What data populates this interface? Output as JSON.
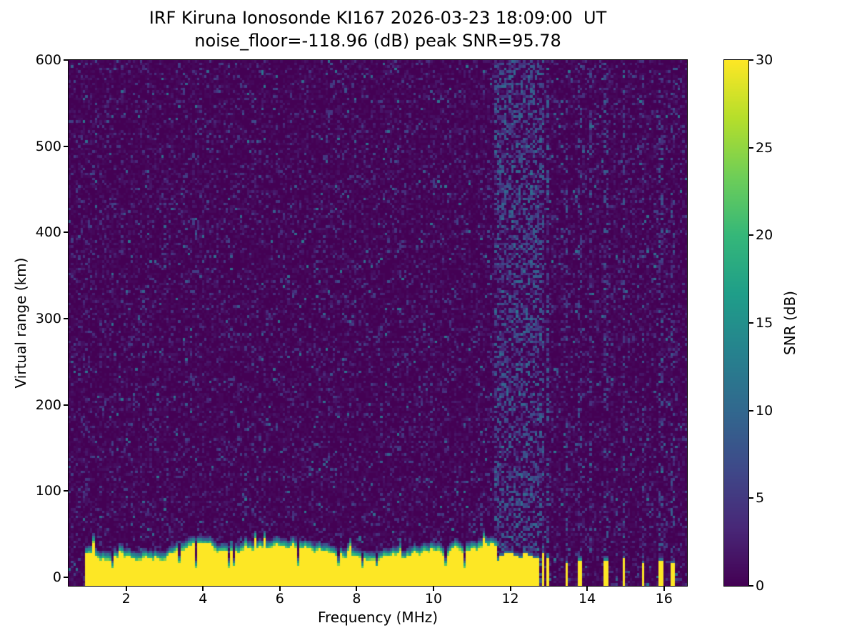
{
  "title": {
    "line1": "IRF Kiruna Ionosonde KI167 2026-03-23 18:09:00  UT",
    "line2": "noise_floor=-118.96 (dB) peak SNR=95.78"
  },
  "axes": {
    "xlabel": "Frequency (MHz)",
    "ylabel": "Virtual range (km)",
    "x_ticks": [
      2,
      4,
      6,
      8,
      10,
      12,
      14,
      16
    ],
    "y_ticks": [
      0,
      100,
      200,
      300,
      400,
      500,
      600
    ]
  },
  "colorbar": {
    "label": "SNR (dB)",
    "ticks": [
      0,
      5,
      10,
      15,
      20,
      25,
      30
    ],
    "range_db": [
      0,
      30
    ],
    "colormap": "viridis",
    "colormap_stops": [
      "#440154",
      "#482878",
      "#3e4989",
      "#31688e",
      "#26828e",
      "#1f9e89",
      "#35b779",
      "#6ece58",
      "#b5de2b",
      "#fde725"
    ]
  },
  "chart_data": {
    "type": "heatmap",
    "title": "IRF Kiruna Ionosonde KI167 2026-03-23 18:09:00  UT",
    "subtitle": "noise_floor=-118.96 (dB) peak SNR=95.78",
    "xlabel": "Frequency (MHz)",
    "ylabel": "Virtual range (km)",
    "colorbar_label": "SNR (dB)",
    "noise_floor_db": -118.96,
    "peak_snr_db": 95.78,
    "x_range_mhz": [
      0.5,
      16.6
    ],
    "y_range_km": [
      -10,
      600
    ],
    "value_range_db": [
      0,
      30
    ],
    "colormap": "viridis",
    "grid": {
      "cols": 260,
      "rows": 210
    },
    "render_seed": 167,
    "features": {
      "background_noise": {
        "description": "sparse blue/teal speckle noise, mostly 0-8 dB, scattered uniformly over the whole ionogram",
        "speckle_fraction": 0.14
      },
      "ground_clutter": {
        "description": "saturated 30 dB yellow band from the bottom of the plot up to roughly 25-40 km virtual range, continuous across the sweep with a thin green/teal fringe, occasional notches down to ~10 km and spikes up to ~45 km",
        "freq_range_mhz": [
          0.95,
          11.62
        ],
        "top_km_mean": 28,
        "top_km_min": 10,
        "top_km_max": 45
      },
      "rfi_stripes_dense_mhz": [
        11.66,
        11.78,
        11.9,
        12.02,
        12.14,
        12.26,
        12.38,
        12.5,
        12.62,
        12.74,
        12.86,
        12.98
      ],
      "rfi_stripes_sparse_mhz": [
        13.48,
        13.82,
        14.1,
        14.5,
        14.95,
        15.45,
        15.9,
        16.22
      ],
      "bottom_bars_mhz": [
        13.48,
        13.82,
        14.5,
        14.95,
        15.45,
        15.9,
        16.22
      ],
      "rfi_description": "broken vertical interference stripes above ~11.6 MHz; dense cluster 11.6-13.0 MHz with solid yellow bases, sparser isolated stripes 13.4-16.3 MHz"
    }
  }
}
